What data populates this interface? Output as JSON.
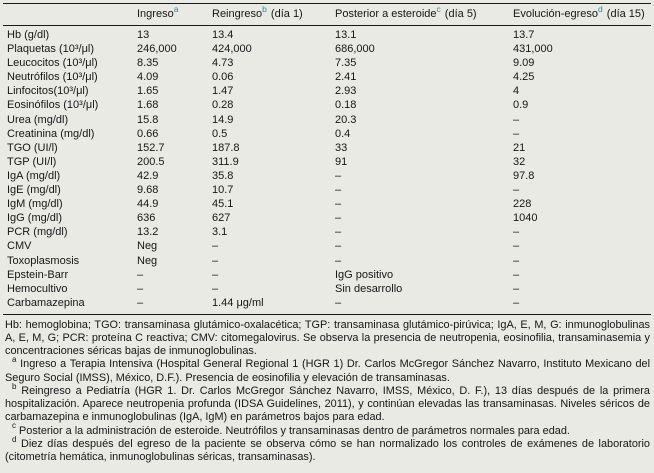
{
  "table": {
    "columns": [
      {
        "label": "",
        "sup": "",
        "suffix": ""
      },
      {
        "label": "Ingreso",
        "sup": "a",
        "suffix": ""
      },
      {
        "label": "Reingreso",
        "sup": "b",
        "suffix": " (día 1)"
      },
      {
        "label": "Posterior a esteroide",
        "sup": "c",
        "suffix": " (día 5)"
      },
      {
        "label": "Evolución-egreso",
        "sup": "d",
        "suffix": " (día 15)"
      }
    ],
    "rows": [
      {
        "label": "Hb (g/dl)",
        "values": [
          "13",
          "13.4",
          "13.1",
          "13.7"
        ]
      },
      {
        "label": "Plaquetas (10³/μl)",
        "values": [
          "246,000",
          "424,000",
          "686,000",
          "431,000"
        ]
      },
      {
        "label": "Leucocitos (10³/μl)",
        "values": [
          "8.35",
          "4.73",
          "7.35",
          "9.09"
        ]
      },
      {
        "label": "Neutrófilos (10³/μl)",
        "values": [
          "4.09",
          "0.06",
          "2.41",
          "4.25"
        ]
      },
      {
        "label": "Linfocitos(10³/μl)",
        "values": [
          "1.65",
          "1.47",
          "2.93",
          "4"
        ]
      },
      {
        "label": "Eosinófilos (10³/μl)",
        "values": [
          "1.68",
          "0.28",
          "0.18",
          "0.9"
        ]
      },
      {
        "label": "Urea (mg/dl)",
        "values": [
          "15.8",
          "14.9",
          "20.3",
          "–"
        ]
      },
      {
        "label": "Creatinina (mg/dl)",
        "values": [
          "0.66",
          "0.5",
          "0.4",
          "–"
        ]
      },
      {
        "label": "TGO (UI/l)",
        "values": [
          "152.7",
          "187.8",
          "33",
          "21"
        ]
      },
      {
        "label": "TGP (UI/l)",
        "values": [
          "200.5",
          "311.9",
          "91",
          "32"
        ]
      },
      {
        "label": "IgA (mg/dl)",
        "values": [
          "42.9",
          "35.8",
          "–",
          "97.8"
        ]
      },
      {
        "label": "IgE (mg/dl)",
        "values": [
          "9.68",
          "10.7",
          "–",
          "–"
        ]
      },
      {
        "label": "IgM (mg/dl)",
        "values": [
          "44.9",
          "45.1",
          "–",
          "228"
        ]
      },
      {
        "label": "IgG (mg/dl)",
        "values": [
          "636",
          "627",
          "–",
          "1040"
        ]
      },
      {
        "label": "PCR (mg/dl)",
        "values": [
          "13.2",
          "3.1",
          "–",
          "–"
        ]
      },
      {
        "label": "CMV",
        "values": [
          "Neg",
          "–",
          "–",
          "–"
        ]
      },
      {
        "label": "Toxoplasmosis",
        "values": [
          "Neg",
          "–",
          "–",
          "–"
        ]
      },
      {
        "label": "Epstein-Barr",
        "values": [
          "–",
          "–",
          "IgG positivo",
          "–"
        ]
      },
      {
        "label": "Hemocultivo",
        "values": [
          "–",
          "–",
          "Sin desarrollo",
          "–"
        ]
      },
      {
        "label": "Carbamazepina",
        "values": [
          "–",
          "1.44 μg/ml",
          "–",
          "–"
        ]
      }
    ]
  },
  "footer": {
    "abbreviations": "Hb: hemoglobina; TGO: transaminasa glutámico-oxalacética; TGP: transaminasa glutámico-pirúvica; IgA, E, M, G: inmunoglobulinas A, E, M, G; PCR: proteína C reactiva; CMV: citomegalovirus. Se observa la presencia de neutropenia, eosinofilia, transaminasemia y concentraciones séricas bajas de inmunoglobulinas.",
    "footnotes": [
      {
        "sup": "a",
        "text": "Ingreso a Terapia Intensiva (Hospital General Regional 1 (HGR 1) Dr. Carlos McGregor Sánchez Navarro, Instituto Mexicano del Seguro Social (IMSS), México, D.F.). Presencia de eosinofilia y elevación de transaminasas."
      },
      {
        "sup": "b",
        "text": "Reingreso a Pediatría (HGR 1. Dr. Carlos McGregor Sánchez Navarro, IMSS, México, D. F.), 13 días después de la primera hospitalización. Aparece neutropenia profunda (IDSA Guidelines, 2011), y continúan elevadas las transaminasas. Niveles séricos de carbamazepina e inmunoglobulinas (IgA, IgM) en parámetros bajos para edad."
      },
      {
        "sup": "c",
        "text": "Posterior a la administración de esteroide. Neutrófilos y transaminasas dentro de parámetros normales para edad."
      },
      {
        "sup": "d",
        "text": "Diez días después del egreso de la paciente se observa cómo se han normalizado los controles de exámenes de laboratorio (citometría hemática, inmunoglobulinas séricas, transaminasas)."
      }
    ]
  },
  "colors": {
    "background": "#e9eae4",
    "text": "#161616",
    "header_superscript": "#2f7fae",
    "rule": "#1a1a1a"
  }
}
